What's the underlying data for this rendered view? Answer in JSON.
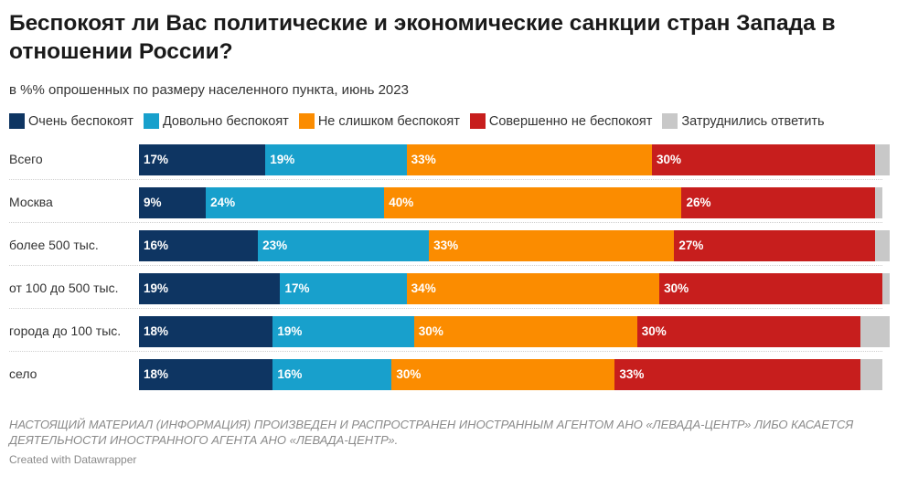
{
  "header": {
    "title": "Беспокоят ли Вас политические и экономические санкции стран Запада в отношении России?",
    "subtitle": "в %% опрошенных по размеру населенного пункта, июнь 2023"
  },
  "chart_data": {
    "type": "bar",
    "orientation": "horizontal",
    "stacked": true,
    "xlim": [
      0,
      100
    ],
    "categories": [
      "Всего",
      "Москва",
      "более 500 тыс.",
      "от 100 до 500 тыс.",
      "города до 100 тыс.",
      "село"
    ],
    "series": [
      {
        "name": "Очень  беспокоят",
        "color": "#0e3562",
        "values": [
          17,
          9,
          16,
          19,
          18,
          18
        ]
      },
      {
        "name": "Довольно беспокоят",
        "color": "#18a0cc",
        "values": [
          19,
          24,
          23,
          17,
          19,
          16
        ]
      },
      {
        "name": "Не слишком беспокоят",
        "color": "#fb8c00",
        "values": [
          33,
          40,
          33,
          34,
          30,
          30
        ]
      },
      {
        "name": "Совершенно не беспокоят",
        "color": "#c71e1d",
        "values": [
          30,
          26,
          27,
          30,
          30,
          33
        ]
      },
      {
        "name": "Затруднились ответить",
        "color": "#c8c8c8",
        "values": [
          2,
          1,
          2,
          1,
          4,
          3
        ]
      }
    ],
    "legend_position": "top-left",
    "grid": false
  },
  "footer": {
    "notes": "НАСТОЯЩИЙ МАТЕРИАЛ (ИНФОРМАЦИЯ) ПРОИЗВЕДЕН И РАСПРОСТРАНЕН ИНОСТРАННЫМ АГЕНТОМ АНО «ЛЕВАДА-ЦЕНТР» ЛИБО КАСАЕТСЯ ДЕЯТЕЛЬНОСТИ ИНОСТРАННОГО АГЕНТА АНО «ЛЕВАДА-ЦЕНТР».",
    "credit": "Created with Datawrapper"
  }
}
